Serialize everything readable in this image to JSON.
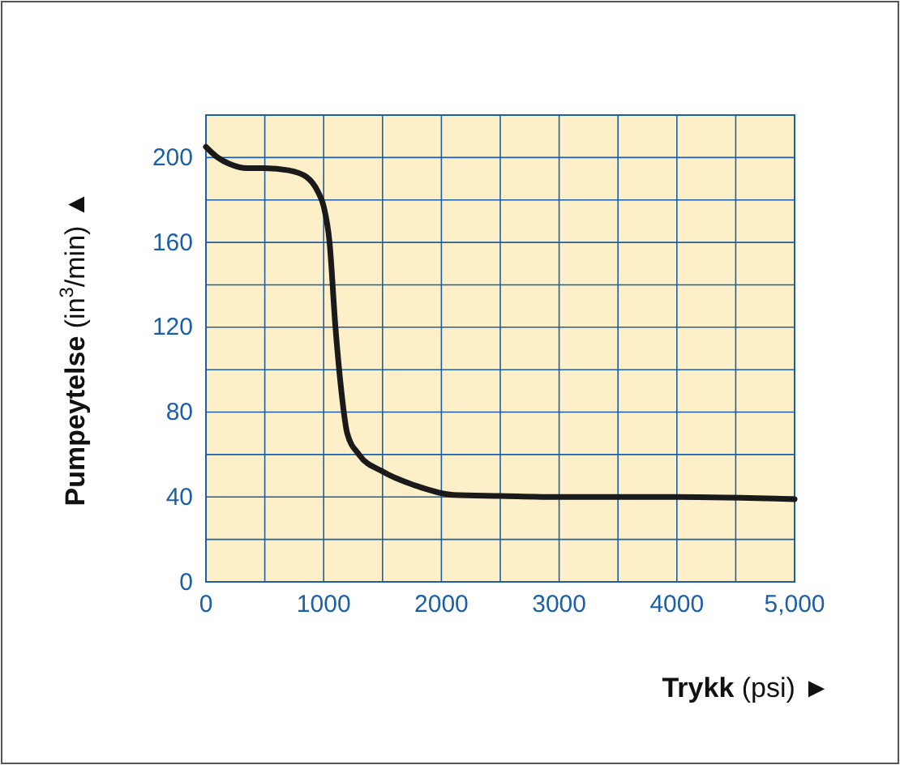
{
  "chart_data": {
    "type": "line",
    "xlabel": "Trykk (psi) ►",
    "ylabel": "Pumpeytelse (in$^{3}$/min) ▲",
    "xlim": [
      0,
      5000
    ],
    "ylim": [
      0,
      220
    ],
    "xticks": [
      0,
      1000,
      2000,
      3000,
      4000,
      {
        "value": 5000,
        "label": "5,000"
      }
    ],
    "yticks": [
      0,
      40,
      80,
      120,
      160,
      200
    ],
    "grid": true,
    "line_style": "solid",
    "marker": "none",
    "series": [
      {
        "color": "#1a1a1a",
        "x": [
          0,
          100,
          200,
          350,
          500,
          700,
          850,
          950,
          1000,
          1050,
          1100,
          1150,
          1200,
          1300,
          1500,
          1800,
          2100,
          2500,
          3000,
          4000,
          5000
        ],
        "values": [
          205,
          200,
          197,
          195,
          195,
          194,
          191,
          184,
          177,
          160,
          120,
          90,
          70,
          60,
          52,
          45,
          41,
          40.5,
          40,
          40,
          39
        ]
      }
    ]
  }
}
